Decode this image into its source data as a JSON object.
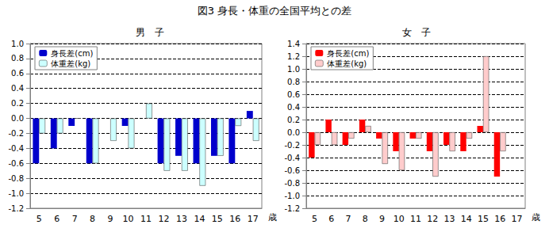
{
  "title": "図3 身長・体重の全国平均との差",
  "chart_data": [
    {
      "type": "bar",
      "title": "男　子",
      "x_label": "歳",
      "categories": [
        "5",
        "6",
        "7",
        "8",
        "9",
        "10",
        "11",
        "12",
        "13",
        "14",
        "15",
        "16",
        "17"
      ],
      "series": [
        {
          "name": "身長差(cm)",
          "color": "#0000cc",
          "values": [
            -0.6,
            -0.4,
            -0.1,
            -0.6,
            0,
            -0.1,
            0,
            -0.6,
            -0.5,
            -0.6,
            -0.5,
            -0.6,
            0.1
          ]
        },
        {
          "name": "体重差(kg)",
          "color": "#ccffff",
          "values": [
            -0.2,
            -0.2,
            0,
            -0.6,
            -0.3,
            -0.4,
            0.2,
            -0.7,
            -0.7,
            -0.9,
            -0.5,
            -0.1,
            -0.3
          ]
        }
      ],
      "ylim": [
        -1.2,
        1.0
      ],
      "yticks": [
        -1.2,
        {
          "value": -1.0,
          "label": "-1.0"
        },
        -0.8,
        -0.6,
        -0.4,
        -0.2,
        {
          "value": 0,
          "label": "0.0"
        },
        0.2,
        0.4,
        0.6,
        0.8,
        {
          "value": 1.0,
          "label": "1.0"
        }
      ],
      "grid": true,
      "legend": "upper left"
    },
    {
      "type": "bar",
      "title": "女　子",
      "x_label": "歳",
      "categories": [
        "5",
        "6",
        "7",
        "8",
        "9",
        "10",
        "11",
        "12",
        "13",
        "14",
        "15",
        "16",
        "17"
      ],
      "series": [
        {
          "name": "身長差(cm)",
          "color": "#ff0000",
          "values": [
            -0.4,
            0.2,
            -0.2,
            0.2,
            -0.1,
            -0.3,
            -0.1,
            -0.3,
            -0.2,
            -0.3,
            0.1,
            -0.7,
            null
          ]
        },
        {
          "name": "体重差(kg)",
          "color": "#ffcccc",
          "values": [
            -0.2,
            -0.2,
            -0.1,
            0.1,
            -0.5,
            -0.6,
            -0.1,
            -0.7,
            -0.3,
            -0.1,
            1.2,
            -0.3,
            null
          ]
        }
      ],
      "ylim": [
        -1.2,
        1.4
      ],
      "yticks": [
        -1.2,
        {
          "value": -1.0,
          "label": "-1.0"
        },
        -0.8,
        -0.6,
        -0.4,
        -0.2,
        {
          "value": 0,
          "label": "0.0"
        },
        0.2,
        0.4,
        0.6,
        0.8,
        {
          "value": 1.0,
          "label": "1.0"
        },
        1.2,
        1.4
      ],
      "grid": true,
      "legend": "upper left"
    }
  ]
}
